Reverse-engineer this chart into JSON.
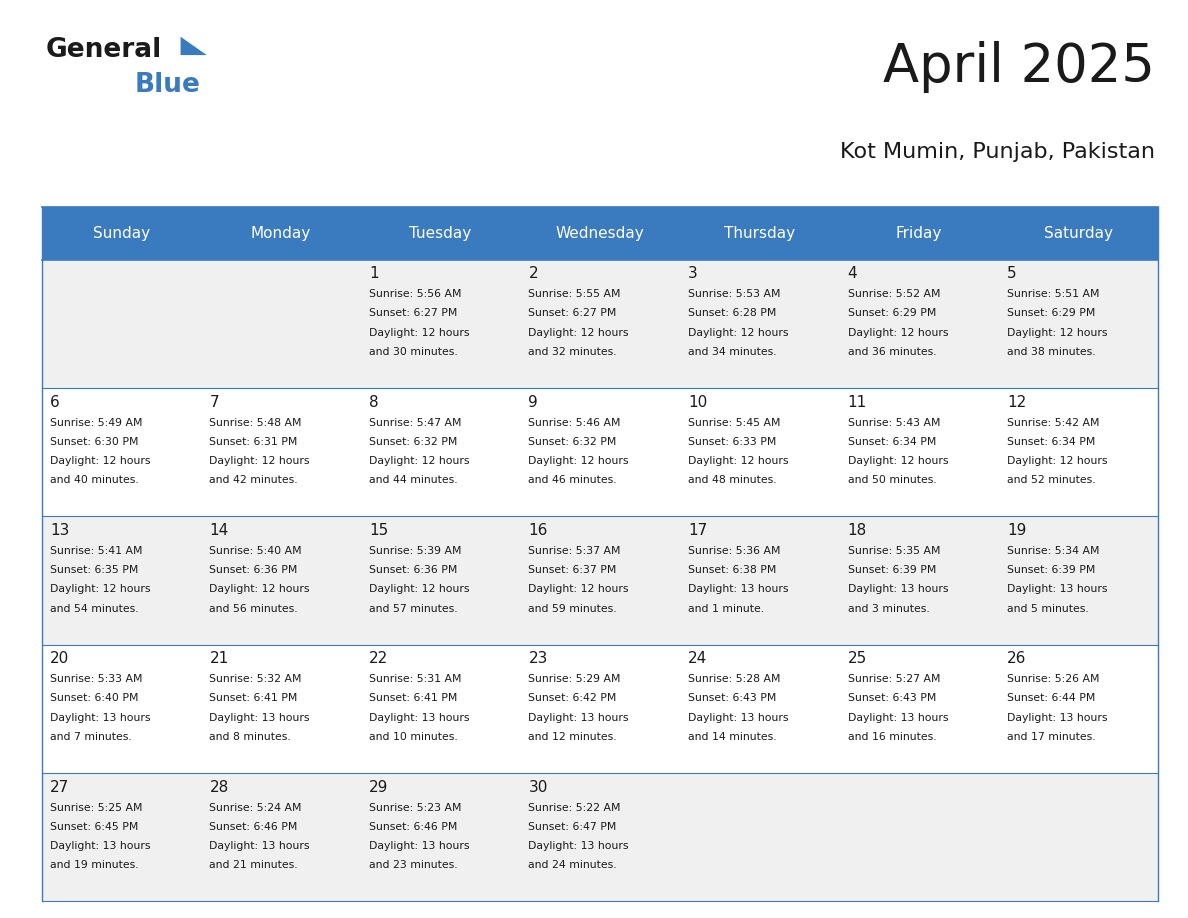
{
  "title": "April 2025",
  "subtitle": "Kot Mumin, Punjab, Pakistan",
  "days_of_week": [
    "Sunday",
    "Monday",
    "Tuesday",
    "Wednesday",
    "Thursday",
    "Friday",
    "Saturday"
  ],
  "header_bg": "#3a7abf",
  "header_text": "#ffffff",
  "cell_bg_light": "#f0f0f0",
  "cell_bg_white": "#ffffff",
  "border_color": "#3a7abf",
  "title_color": "#1a1a1a",
  "subtitle_color": "#1a1a1a",
  "text_color": "#1a1a1a",
  "logo_black": "#1a1a1a",
  "logo_blue": "#3a7abf",
  "calendar_data": [
    [
      {
        "day": null,
        "sunrise": null,
        "sunset": null,
        "daylight_line1": null,
        "daylight_line2": null
      },
      {
        "day": null,
        "sunrise": null,
        "sunset": null,
        "daylight_line1": null,
        "daylight_line2": null
      },
      {
        "day": 1,
        "sunrise": "5:56 AM",
        "sunset": "6:27 PM",
        "daylight_line1": "12 hours",
        "daylight_line2": "and 30 minutes."
      },
      {
        "day": 2,
        "sunrise": "5:55 AM",
        "sunset": "6:27 PM",
        "daylight_line1": "12 hours",
        "daylight_line2": "and 32 minutes."
      },
      {
        "day": 3,
        "sunrise": "5:53 AM",
        "sunset": "6:28 PM",
        "daylight_line1": "12 hours",
        "daylight_line2": "and 34 minutes."
      },
      {
        "day": 4,
        "sunrise": "5:52 AM",
        "sunset": "6:29 PM",
        "daylight_line1": "12 hours",
        "daylight_line2": "and 36 minutes."
      },
      {
        "day": 5,
        "sunrise": "5:51 AM",
        "sunset": "6:29 PM",
        "daylight_line1": "12 hours",
        "daylight_line2": "and 38 minutes."
      }
    ],
    [
      {
        "day": 6,
        "sunrise": "5:49 AM",
        "sunset": "6:30 PM",
        "daylight_line1": "12 hours",
        "daylight_line2": "and 40 minutes."
      },
      {
        "day": 7,
        "sunrise": "5:48 AM",
        "sunset": "6:31 PM",
        "daylight_line1": "12 hours",
        "daylight_line2": "and 42 minutes."
      },
      {
        "day": 8,
        "sunrise": "5:47 AM",
        "sunset": "6:32 PM",
        "daylight_line1": "12 hours",
        "daylight_line2": "and 44 minutes."
      },
      {
        "day": 9,
        "sunrise": "5:46 AM",
        "sunset": "6:32 PM",
        "daylight_line1": "12 hours",
        "daylight_line2": "and 46 minutes."
      },
      {
        "day": 10,
        "sunrise": "5:45 AM",
        "sunset": "6:33 PM",
        "daylight_line1": "12 hours",
        "daylight_line2": "and 48 minutes."
      },
      {
        "day": 11,
        "sunrise": "5:43 AM",
        "sunset": "6:34 PM",
        "daylight_line1": "12 hours",
        "daylight_line2": "and 50 minutes."
      },
      {
        "day": 12,
        "sunrise": "5:42 AM",
        "sunset": "6:34 PM",
        "daylight_line1": "12 hours",
        "daylight_line2": "and 52 minutes."
      }
    ],
    [
      {
        "day": 13,
        "sunrise": "5:41 AM",
        "sunset": "6:35 PM",
        "daylight_line1": "12 hours",
        "daylight_line2": "and 54 minutes."
      },
      {
        "day": 14,
        "sunrise": "5:40 AM",
        "sunset": "6:36 PM",
        "daylight_line1": "12 hours",
        "daylight_line2": "and 56 minutes."
      },
      {
        "day": 15,
        "sunrise": "5:39 AM",
        "sunset": "6:36 PM",
        "daylight_line1": "12 hours",
        "daylight_line2": "and 57 minutes."
      },
      {
        "day": 16,
        "sunrise": "5:37 AM",
        "sunset": "6:37 PM",
        "daylight_line1": "12 hours",
        "daylight_line2": "and 59 minutes."
      },
      {
        "day": 17,
        "sunrise": "5:36 AM",
        "sunset": "6:38 PM",
        "daylight_line1": "13 hours",
        "daylight_line2": "and 1 minute."
      },
      {
        "day": 18,
        "sunrise": "5:35 AM",
        "sunset": "6:39 PM",
        "daylight_line1": "13 hours",
        "daylight_line2": "and 3 minutes."
      },
      {
        "day": 19,
        "sunrise": "5:34 AM",
        "sunset": "6:39 PM",
        "daylight_line1": "13 hours",
        "daylight_line2": "and 5 minutes."
      }
    ],
    [
      {
        "day": 20,
        "sunrise": "5:33 AM",
        "sunset": "6:40 PM",
        "daylight_line1": "13 hours",
        "daylight_line2": "and 7 minutes."
      },
      {
        "day": 21,
        "sunrise": "5:32 AM",
        "sunset": "6:41 PM",
        "daylight_line1": "13 hours",
        "daylight_line2": "and 8 minutes."
      },
      {
        "day": 22,
        "sunrise": "5:31 AM",
        "sunset": "6:41 PM",
        "daylight_line1": "13 hours",
        "daylight_line2": "and 10 minutes."
      },
      {
        "day": 23,
        "sunrise": "5:29 AM",
        "sunset": "6:42 PM",
        "daylight_line1": "13 hours",
        "daylight_line2": "and 12 minutes."
      },
      {
        "day": 24,
        "sunrise": "5:28 AM",
        "sunset": "6:43 PM",
        "daylight_line1": "13 hours",
        "daylight_line2": "and 14 minutes."
      },
      {
        "day": 25,
        "sunrise": "5:27 AM",
        "sunset": "6:43 PM",
        "daylight_line1": "13 hours",
        "daylight_line2": "and 16 minutes."
      },
      {
        "day": 26,
        "sunrise": "5:26 AM",
        "sunset": "6:44 PM",
        "daylight_line1": "13 hours",
        "daylight_line2": "and 17 minutes."
      }
    ],
    [
      {
        "day": 27,
        "sunrise": "5:25 AM",
        "sunset": "6:45 PM",
        "daylight_line1": "13 hours",
        "daylight_line2": "and 19 minutes."
      },
      {
        "day": 28,
        "sunrise": "5:24 AM",
        "sunset": "6:46 PM",
        "daylight_line1": "13 hours",
        "daylight_line2": "and 21 minutes."
      },
      {
        "day": 29,
        "sunrise": "5:23 AM",
        "sunset": "6:46 PM",
        "daylight_line1": "13 hours",
        "daylight_line2": "and 23 minutes."
      },
      {
        "day": 30,
        "sunrise": "5:22 AM",
        "sunset": "6:47 PM",
        "daylight_line1": "13 hours",
        "daylight_line2": "and 24 minutes."
      },
      {
        "day": null,
        "sunrise": null,
        "sunset": null,
        "daylight_line1": null,
        "daylight_line2": null
      },
      {
        "day": null,
        "sunrise": null,
        "sunset": null,
        "daylight_line1": null,
        "daylight_line2": null
      },
      {
        "day": null,
        "sunrise": null,
        "sunset": null,
        "daylight_line1": null,
        "daylight_line2": null
      }
    ]
  ]
}
